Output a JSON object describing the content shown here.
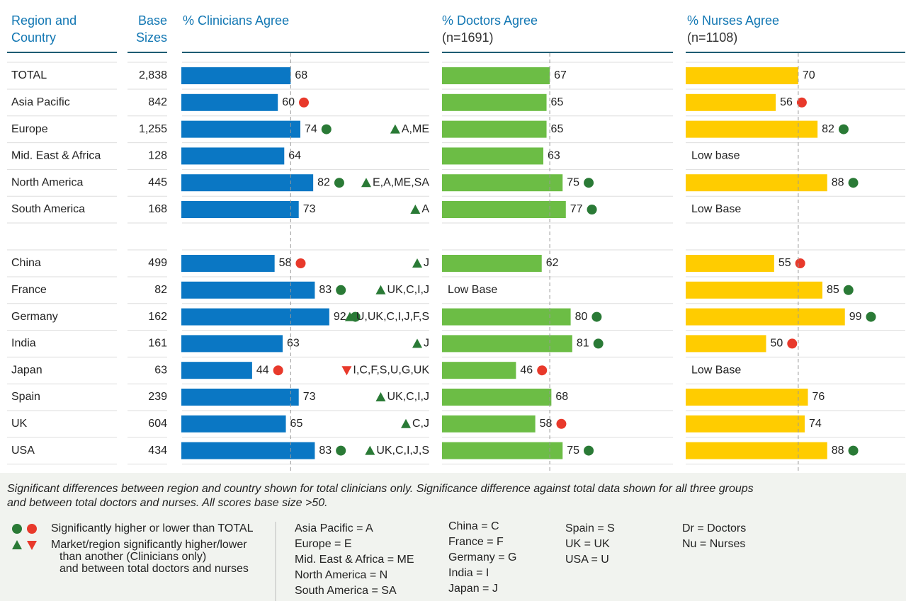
{
  "header": {
    "region": [
      "Region and",
      "Country"
    ],
    "base": [
      "Base",
      "Sizes"
    ],
    "clinicians": "% Clinicians Agree",
    "doctors": "% Doctors Agree",
    "doctors_n": "(n=1691)",
    "nurses": "% Nurses Agree",
    "nurses_n": "(n=1108)"
  },
  "colors": {
    "clinicians": "#0a77c4",
    "doctors": "#6cbd45",
    "nurses": "#ffcc00",
    "higher": "#2a7a36",
    "lower": "#e8392b"
  },
  "groups": [
    [
      {
        "name": "TOTAL",
        "base": "2,838",
        "clinicians": {
          "value": 68
        },
        "doctors": {
          "value": 67
        },
        "nurses": {
          "value": 70
        }
      },
      {
        "name": "Asia Pacific",
        "base": "842",
        "clinicians": {
          "value": 60,
          "sig": "lower"
        },
        "doctors": {
          "value": 65
        },
        "nurses": {
          "value": 56,
          "sig": "lower"
        }
      },
      {
        "name": "Europe",
        "base": "1,255",
        "clinicians": {
          "value": 74,
          "sig": "higher"
        },
        "note": {
          "dir": "up",
          "text": "A,ME"
        },
        "doctors": {
          "value": 65
        },
        "nurses": {
          "value": 82,
          "sig": "higher"
        }
      },
      {
        "name": "Mid. East & Africa",
        "base": "128",
        "clinicians": {
          "value": 64
        },
        "doctors": {
          "value": 63
        },
        "nurses": {
          "label": "Low base"
        }
      },
      {
        "name": "North America",
        "base": "445",
        "clinicians": {
          "value": 82,
          "sig": "higher"
        },
        "note": {
          "dir": "up",
          "text": "E,A,ME,SA"
        },
        "doctors": {
          "value": 75,
          "sig": "higher"
        },
        "nurses": {
          "value": 88,
          "sig": "higher"
        }
      },
      {
        "name": "South America",
        "base": "168",
        "clinicians": {
          "value": 73
        },
        "note": {
          "dir": "up",
          "text": "A"
        },
        "doctors": {
          "value": 77,
          "sig": "higher"
        },
        "nurses": {
          "label": "Low Base"
        }
      }
    ],
    [
      {
        "name": "China",
        "base": "499",
        "clinicians": {
          "value": 58,
          "sig": "lower"
        },
        "note": {
          "dir": "up",
          "text": "J"
        },
        "doctors": {
          "value": 62
        },
        "nurses": {
          "value": 55,
          "sig": "lower"
        }
      },
      {
        "name": "France",
        "base": "82",
        "clinicians": {
          "value": 83,
          "sig": "higher"
        },
        "note": {
          "dir": "up",
          "text": "UK,C,I,J"
        },
        "doctors": {
          "label": "Low Base"
        },
        "nurses": {
          "value": 85,
          "sig": "higher"
        }
      },
      {
        "name": "Germany",
        "base": "162",
        "clinicians": {
          "value": 92,
          "sig": "higher"
        },
        "note": {
          "dir": "up",
          "text": "U,UK,C,I,J,F,S"
        },
        "doctors": {
          "value": 80,
          "sig": "higher"
        },
        "nurses": {
          "value": 99,
          "sig": "higher"
        }
      },
      {
        "name": "India",
        "base": "161",
        "clinicians": {
          "value": 63
        },
        "note": {
          "dir": "up",
          "text": "J"
        },
        "doctors": {
          "value": 81,
          "sig": "higher"
        },
        "nurses": {
          "value": 50,
          "sig": "lower"
        }
      },
      {
        "name": "Japan",
        "base": "63",
        "clinicians": {
          "value": 44,
          "sig": "lower"
        },
        "note": {
          "dir": "down",
          "text": "I,C,F,S,U,G,UK"
        },
        "doctors": {
          "value": 46,
          "sig": "lower"
        },
        "nurses": {
          "label": "Low Base"
        }
      },
      {
        "name": "Spain",
        "base": "239",
        "clinicians": {
          "value": 73
        },
        "note": {
          "dir": "up",
          "text": "UK,C,I,J"
        },
        "doctors": {
          "value": 68
        },
        "nurses": {
          "value": 76
        }
      },
      {
        "name": "UK",
        "base": "604",
        "clinicians": {
          "value": 65
        },
        "note": {
          "dir": "up",
          "text": "C,J"
        },
        "doctors": {
          "value": 58,
          "sig": "lower"
        },
        "nurses": {
          "value": 74
        }
      },
      {
        "name": "USA",
        "base": "434",
        "clinicians": {
          "value": 83,
          "sig": "higher"
        },
        "note": {
          "dir": "up",
          "text": "UK,C,I,J,S"
        },
        "doctors": {
          "value": 75,
          "sig": "higher"
        },
        "nurses": {
          "value": 88,
          "sig": "higher"
        }
      }
    ]
  ],
  "footer": {
    "note": [
      "Significant differences between region and country shown for total clinicians only. Significance difference against total data shown for all three groups",
      "and between total doctors and nurses. All scores base size >50."
    ],
    "dots_key": "Significantly higher or lower than TOTAL",
    "triangles_key": [
      "Market/region significantly higher/lower",
      "than another (Clinicians only)",
      "and between total doctors and nurses"
    ],
    "abbreviations": [
      [
        "Asia Pacific = A",
        "Europe = E",
        "Mid. East & Africa = ME",
        "North America  = N",
        "South America = SA"
      ],
      [
        "China = C",
        "France = F",
        "Germany = G",
        "India = I",
        "Japan = J"
      ],
      [
        "Spain = S",
        "UK = UK",
        "USA = U"
      ],
      [
        "Dr = Doctors",
        "Nu = Nurses"
      ]
    ]
  }
}
